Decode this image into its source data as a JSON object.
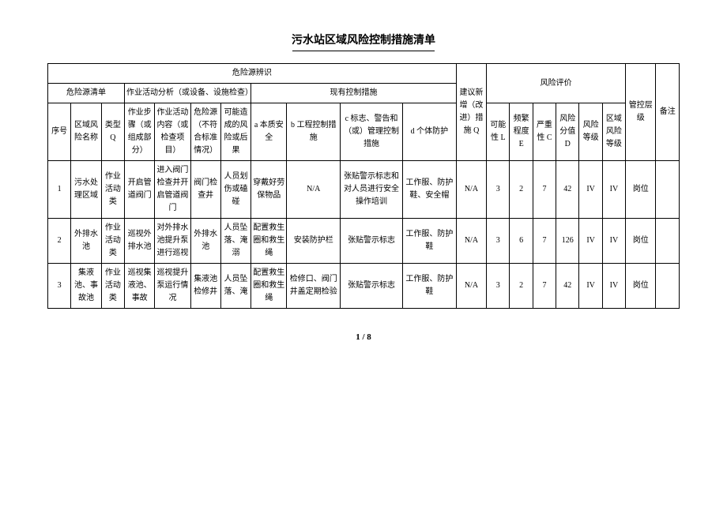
{
  "title": "污水站区域风险控制措施清单",
  "footer": "1 / 8",
  "headers": {
    "group1": "危险源辨识",
    "sub1": "危险源清单",
    "sub2": "作业活动分析（或设备、设施检查）",
    "sub3": "现有控制措施",
    "suggest": "建议新增（改进）措施 Q",
    "risk_eval": "风险评价",
    "c1": "序号",
    "c2": "区域风险名称",
    "c3": "类型 Q",
    "c4": "作业步骤（或组成部分）",
    "c5": "作业活动内容（或检查项目）",
    "c6": "危险源（不符合标准情况）",
    "c7": "可能造成的风险或后果",
    "c8": "a 本质安全",
    "c9": "b 工程控制措施",
    "c10": "c 标志、警告和（或）管理控制措施",
    "c11": "d 个体防护",
    "c13": "可能性 L",
    "c14": "频繁程度 E",
    "c15": "严重性 C",
    "c16": "风险分值 D",
    "c17": "风险等级",
    "c18": "区域风险等级",
    "c19": "管控层级",
    "c20": "备注"
  },
  "rows": [
    {
      "n": "1",
      "area": "污水处理区域",
      "type": "作业活动类",
      "step": "开启管道阀门",
      "content": "进入阀门检查并开启管道阀门",
      "source": "阀门检查井",
      "risk": "人员划伤或磕碰",
      "a": "穿戴好劳保物品",
      "b": "N/A",
      "c": "张贴警示标志和对人员进行安全操作培训",
      "d": "工作服、防护鞋、安全帽",
      "suggest": "N/A",
      "L": "3",
      "E": "2",
      "C": "7",
      "D": "42",
      "lvl": "IV",
      "areaLvl": "IV",
      "ctrl": "岗位",
      "note": ""
    },
    {
      "n": "2",
      "area": "外排水池",
      "type": "作业活动类",
      "step": "巡视外排水池",
      "content": "对外排水池提升泵进行巡视",
      "source": "外排水池",
      "risk": "人员坠落、淹溺",
      "a": "配置救生圈和救生绳",
      "b": "安装防护栏",
      "c": "张贴警示标志",
      "d": "工作服、防护鞋",
      "suggest": "N/A",
      "L": "3",
      "E": "6",
      "C": "7",
      "D": "126",
      "lvl": "IV",
      "areaLvl": "IV",
      "ctrl": "岗位",
      "note": ""
    },
    {
      "n": "3",
      "area": "集液池、事故池",
      "type": "作业活动类",
      "step": "巡视集液池、事故",
      "content": "巡视提升泵运行情况",
      "source": "集液池检修井",
      "risk": "人员坠落、淹",
      "a": "配置救生圈和救生绳",
      "b": "检修口、阀门井盖定期检验",
      "c": "张贴警示标志",
      "d": "工作服、防护鞋",
      "suggest": "N/A",
      "L": "3",
      "E": "2",
      "C": "7",
      "D": "42",
      "lvl": "IV",
      "areaLvl": "IV",
      "ctrl": "岗位",
      "note": ""
    }
  ]
}
